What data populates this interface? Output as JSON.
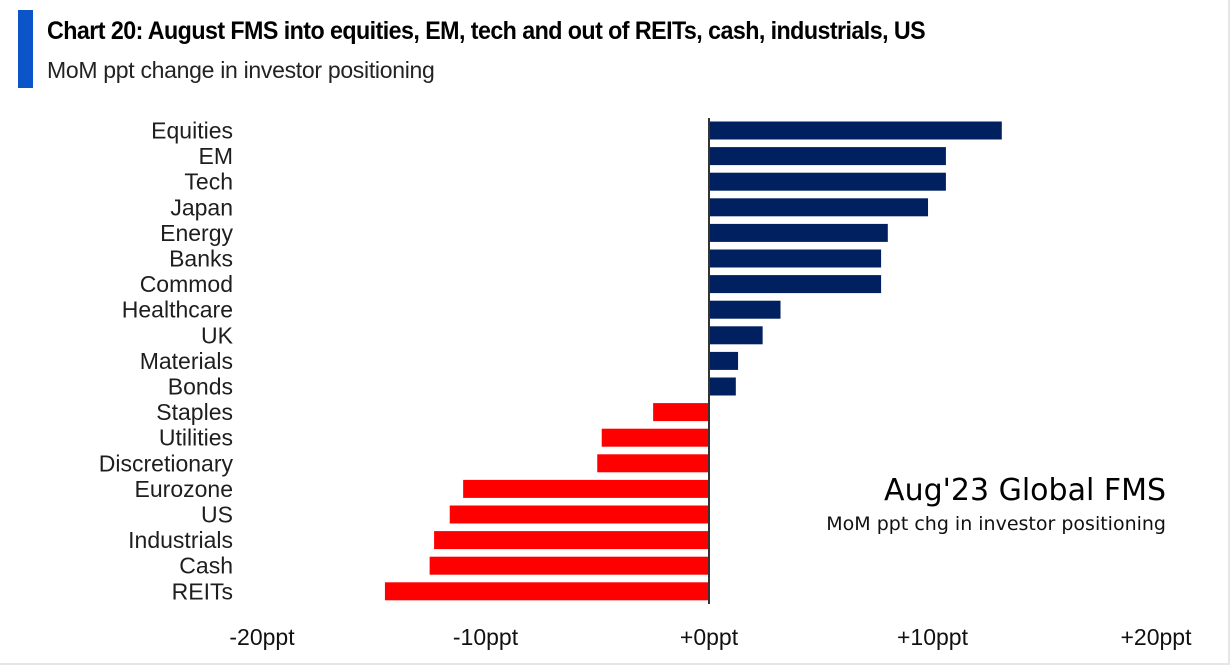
{
  "header": {
    "title": "Chart 20: August FMS into equities, EM, tech and out of REITs, cash, industrials, US",
    "subtitle": "MoM ppt change in investor positioning",
    "accent_color": "#0b55c8"
  },
  "chart_data": {
    "type": "bar",
    "orientation": "horizontal",
    "title": "Chart 20: August FMS into equities, EM, tech and out of REITs, cash, industrials, US",
    "subtitle": "MoM ppt change in investor positioning",
    "xlabel": "",
    "ylabel": "",
    "xlim": [
      -20,
      20
    ],
    "xticks": [
      -20,
      -10,
      0,
      10,
      20
    ],
    "xtick_labels": [
      "-20ppt",
      "-10ppt",
      "+0ppt",
      "+10ppt",
      "+20ppt"
    ],
    "grid": false,
    "categories": [
      "Equities",
      "EM",
      "Tech",
      "Japan",
      "Energy",
      "Banks",
      "Commod",
      "Healthcare",
      "UK",
      "Materials",
      "Bonds",
      "Staples",
      "Utilities",
      "Discretionary",
      "Eurozone",
      "US",
      "Industrials",
      "Cash",
      "REITs"
    ],
    "values": [
      13.1,
      10.6,
      10.6,
      9.8,
      8.0,
      7.7,
      7.7,
      3.2,
      2.4,
      1.3,
      1.2,
      -2.5,
      -4.8,
      -5.0,
      -11.0,
      -11.6,
      -12.3,
      -12.5,
      -14.5
    ],
    "colors": {
      "positive": "#002060",
      "negative": "#ff0000"
    },
    "annotation": {
      "title": "Aug'23 Global FMS",
      "subtitle": "MoM ppt chg in investor positioning",
      "placement": "bottom-right"
    }
  }
}
